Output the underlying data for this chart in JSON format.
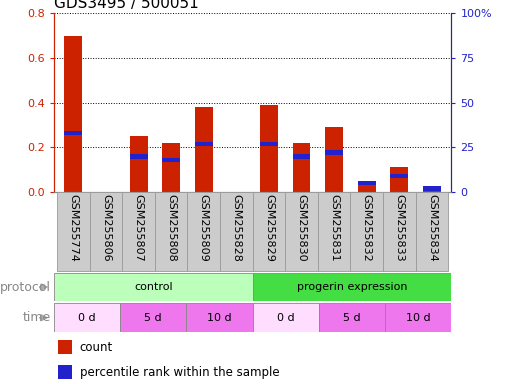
{
  "title": "GDS3495 / 500051",
  "samples": [
    "GSM255774",
    "GSM255806",
    "GSM255807",
    "GSM255808",
    "GSM255809",
    "GSM255828",
    "GSM255829",
    "GSM255830",
    "GSM255831",
    "GSM255832",
    "GSM255833",
    "GSM255834"
  ],
  "count_values": [
    0.7,
    0.0,
    0.25,
    0.22,
    0.38,
    0.0,
    0.39,
    0.22,
    0.29,
    0.04,
    0.11,
    0.02
  ],
  "percentile_values": [
    33,
    0,
    20,
    18,
    27,
    0,
    27,
    20,
    22,
    5,
    9,
    2
  ],
  "left_ylim": [
    0,
    0.8
  ],
  "left_yticks": [
    0,
    0.2,
    0.4,
    0.6,
    0.8
  ],
  "right_ylim": [
    0,
    100
  ],
  "right_yticks": [
    0,
    25,
    50,
    75,
    100
  ],
  "right_yticklabels": [
    "0",
    "25",
    "50",
    "75",
    "100%"
  ],
  "bar_color": "#cc2200",
  "blue_color": "#2222cc",
  "left_axis_color": "#cc2200",
  "right_axis_color": "#2222cc",
  "protocol_groups": [
    {
      "label": "control",
      "start": 0,
      "end": 6,
      "color": "#bbffbb"
    },
    {
      "label": "progerin expression",
      "start": 6,
      "end": 12,
      "color": "#44dd44"
    }
  ],
  "time_colors_map": {
    "0 d": "#ffddff",
    "5 d": "#ee77ee",
    "10 d": "#ee77ee"
  },
  "time_groups": [
    {
      "label": "0 d",
      "start": 0,
      "end": 2
    },
    {
      "label": "5 d",
      "start": 2,
      "end": 4
    },
    {
      "label": "10 d",
      "start": 4,
      "end": 6
    },
    {
      "label": "0 d",
      "start": 6,
      "end": 8
    },
    {
      "label": "5 d",
      "start": 8,
      "end": 10
    },
    {
      "label": "10 d",
      "start": 10,
      "end": 12
    }
  ],
  "legend_count_label": "count",
  "legend_pct_label": "percentile rank within the sample",
  "bar_width": 0.55,
  "sample_label_color": "#cccccc",
  "sample_label_edge": "#999999",
  "grid_color": "black",
  "title_fontsize": 11,
  "tick_fontsize": 8,
  "label_fontsize": 8,
  "protocol_fontsize": 8,
  "time_fontsize": 8
}
